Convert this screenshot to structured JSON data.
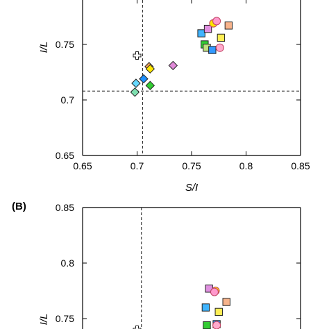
{
  "chart_data": [
    {
      "type": "scatter",
      "panel_label": "",
      "xlabel": "S/I",
      "ylabel": "I/L",
      "xlim": [
        0.65,
        0.85
      ],
      "ylim": [
        0.65,
        0.8
      ],
      "xticks": [
        "0.65",
        "0.7",
        "0.75",
        "0.8",
        "0.85"
      ],
      "yticks": [
        "0.65",
        "0.7",
        "0.75"
      ],
      "xtick_values": [
        0.65,
        0.7,
        0.75,
        0.8,
        0.85
      ],
      "ytick_values": [
        0.65,
        0.7,
        0.75
      ],
      "grid": false,
      "reference_lines": {
        "vertical_x": 0.705,
        "horizontal_y": 0.708
      },
      "points": [
        {
          "x": 0.7,
          "y": 0.74,
          "marker": "plus",
          "color": "#ffffff"
        },
        {
          "x": 0.711,
          "y": 0.73,
          "marker": "diamond",
          "color": "#f4a460"
        },
        {
          "x": 0.712,
          "y": 0.728,
          "marker": "diamond",
          "color": "#ffe600"
        },
        {
          "x": 0.733,
          "y": 0.731,
          "marker": "diamond",
          "color": "#e08ad8"
        },
        {
          "x": 0.706,
          "y": 0.719,
          "marker": "diamond",
          "color": "#1e90ff"
        },
        {
          "x": 0.699,
          "y": 0.715,
          "marker": "diamond",
          "color": "#66d9ff"
        },
        {
          "x": 0.712,
          "y": 0.713,
          "marker": "diamond",
          "color": "#33cc33"
        },
        {
          "x": 0.698,
          "y": 0.707,
          "marker": "diamond",
          "color": "#7fe0b0"
        },
        {
          "x": 0.759,
          "y": 0.76,
          "marker": "square",
          "color": "#40b4ff"
        },
        {
          "x": 0.765,
          "y": 0.764,
          "marker": "square",
          "color": "#e090e0"
        },
        {
          "x": 0.77,
          "y": 0.769,
          "marker": "circle",
          "color": "#ffe600"
        },
        {
          "x": 0.773,
          "y": 0.771,
          "marker": "circle",
          "color": "#ff99cc"
        },
        {
          "x": 0.784,
          "y": 0.767,
          "marker": "square",
          "color": "#f8b48c"
        },
        {
          "x": 0.777,
          "y": 0.756,
          "marker": "square",
          "color": "#ffee55"
        },
        {
          "x": 0.762,
          "y": 0.75,
          "marker": "square",
          "color": "#33cc33"
        },
        {
          "x": 0.764,
          "y": 0.747,
          "marker": "square",
          "color": "#bfe080"
        },
        {
          "x": 0.769,
          "y": 0.745,
          "marker": "square",
          "color": "#3399ff"
        },
        {
          "x": 0.776,
          "y": 0.747,
          "marker": "circle",
          "color": "#ffaacc"
        }
      ]
    },
    {
      "type": "scatter",
      "panel_label": "(B)",
      "xlabel": "",
      "ylabel": "I/L",
      "xlim": [
        0.65,
        0.85
      ],
      "ylim": [
        0.72,
        0.85
      ],
      "yticks": [
        "0.75",
        "0.8",
        "0.85"
      ],
      "ytick_values": [
        0.75,
        0.8,
        0.85
      ],
      "grid": false,
      "reference_lines": {
        "vertical_x": 0.704
      },
      "points": [
        {
          "x": 0.7,
          "y": 0.74,
          "marker": "plus",
          "color": "#ffffff"
        },
        {
          "x": 0.766,
          "y": 0.777,
          "marker": "square",
          "color": "#e090e0"
        },
        {
          "x": 0.772,
          "y": 0.775,
          "marker": "circle",
          "color": "#ffe600"
        },
        {
          "x": 0.771,
          "y": 0.774,
          "marker": "circle",
          "color": "#ff99cc"
        },
        {
          "x": 0.782,
          "y": 0.765,
          "marker": "square",
          "color": "#f8b48c"
        },
        {
          "x": 0.763,
          "y": 0.76,
          "marker": "square",
          "color": "#40b4ff"
        },
        {
          "x": 0.775,
          "y": 0.756,
          "marker": "square",
          "color": "#ffee55"
        },
        {
          "x": 0.764,
          "y": 0.744,
          "marker": "square",
          "color": "#33cc33"
        },
        {
          "x": 0.773,
          "y": 0.745,
          "marker": "square",
          "color": "#3399ff"
        },
        {
          "x": 0.773,
          "y": 0.744,
          "marker": "circle",
          "color": "#ffaacc"
        }
      ]
    }
  ]
}
